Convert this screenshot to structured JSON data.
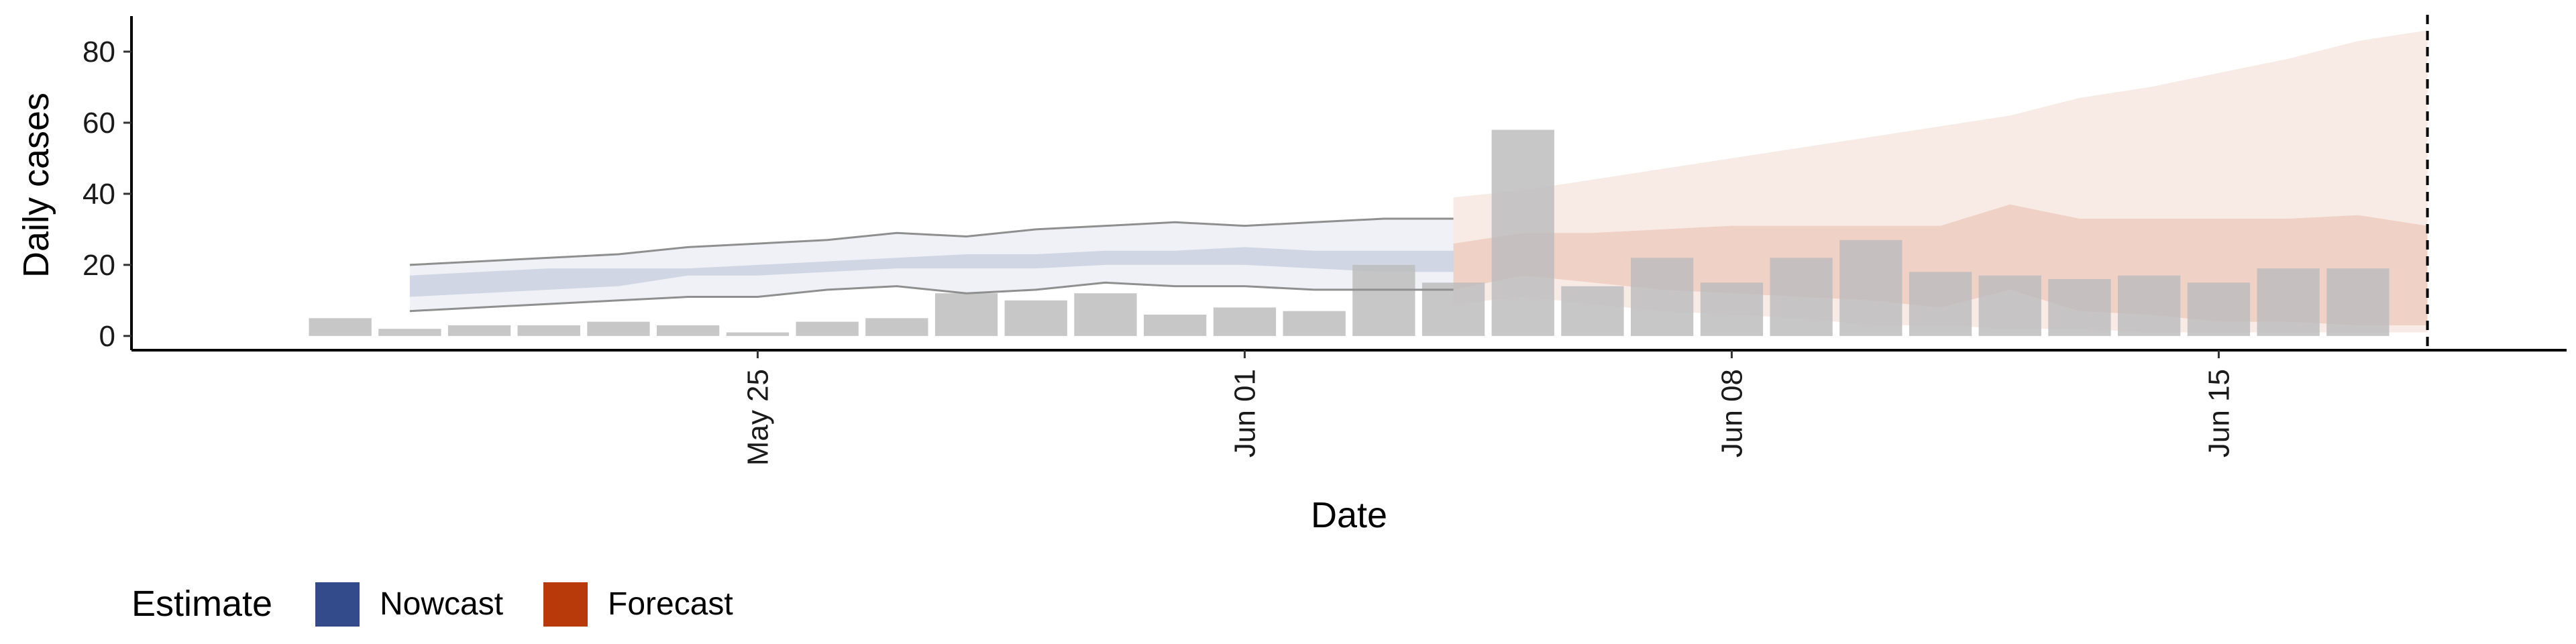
{
  "chart_data": {
    "type": "bar",
    "xlabel": "Date",
    "ylabel": "Daily cases",
    "ylim": [
      -4,
      90
    ],
    "yticks": [
      0,
      20,
      40,
      60,
      80
    ],
    "xlim": [
      "2020-05-16",
      "2020-06-20"
    ],
    "xticks": [
      {
        "date": "2020-05-25",
        "label": "May 25"
      },
      {
        "date": "2020-06-01",
        "label": "Jun 01"
      },
      {
        "date": "2020-06-08",
        "label": "Jun 08"
      },
      {
        "date": "2020-06-15",
        "label": "Jun 15"
      }
    ],
    "reference_line": {
      "date": "2020-06-18",
      "style": "dashed"
    },
    "grid": false,
    "legend": {
      "title": "Estimate",
      "placement": "bottom-left",
      "entries": [
        {
          "label": "Nowcast",
          "color": "#344b8b"
        },
        {
          "label": "Forecast",
          "color": "#b83a0a"
        }
      ]
    },
    "colors": {
      "bars": "#bdbdbd",
      "nowcast": "#344b8b",
      "forecast": "#b83a0a",
      "nowcast_outline": "#8f8f8f"
    },
    "observed": {
      "dates": [
        "2020-05-19",
        "2020-05-20",
        "2020-05-21",
        "2020-05-22",
        "2020-05-23",
        "2020-05-24",
        "2020-05-25",
        "2020-05-26",
        "2020-05-27",
        "2020-05-28",
        "2020-05-29",
        "2020-05-30",
        "2020-05-31",
        "2020-06-01",
        "2020-06-02",
        "2020-06-03",
        "2020-06-04",
        "2020-06-05",
        "2020-06-06",
        "2020-06-07",
        "2020-06-08",
        "2020-06-09",
        "2020-06-10",
        "2020-06-11",
        "2020-06-12",
        "2020-06-13",
        "2020-06-14",
        "2020-06-15",
        "2020-06-16",
        "2020-06-17"
      ],
      "values": [
        5,
        2,
        3,
        3,
        4,
        3,
        1,
        4,
        5,
        12,
        10,
        12,
        6,
        8,
        7,
        20,
        15,
        58,
        14,
        22,
        15,
        22,
        27,
        18,
        17,
        16,
        17,
        15,
        19,
        19
      ]
    },
    "nowcast": {
      "dates": [
        "2020-05-20",
        "2020-05-21",
        "2020-05-22",
        "2020-05-23",
        "2020-05-24",
        "2020-05-25",
        "2020-05-26",
        "2020-05-27",
        "2020-05-28",
        "2020-05-29",
        "2020-05-30",
        "2020-05-31",
        "2020-06-01",
        "2020-06-02",
        "2020-06-03",
        "2020-06-04"
      ],
      "lower_90": [
        7,
        8,
        9,
        10,
        11,
        11,
        13,
        14,
        12,
        13,
        15,
        14,
        14,
        13,
        13,
        13
      ],
      "lower_50": [
        11,
        12,
        13,
        14,
        17,
        17,
        18,
        19,
        19,
        19,
        20,
        20,
        20,
        19,
        18,
        18
      ],
      "upper_50": [
        17,
        18,
        19,
        19,
        19,
        20,
        21,
        22,
        23,
        23,
        24,
        24,
        25,
        24,
        24,
        24
      ],
      "upper_90": [
        20,
        21,
        22,
        23,
        25,
        26,
        27,
        29,
        28,
        30,
        31,
        32,
        31,
        32,
        33,
        33
      ]
    },
    "forecast": {
      "dates": [
        "2020-06-04",
        "2020-06-05",
        "2020-06-06",
        "2020-06-07",
        "2020-06-08",
        "2020-06-09",
        "2020-06-10",
        "2020-06-11",
        "2020-06-12",
        "2020-06-13",
        "2020-06-14",
        "2020-06-15",
        "2020-06-16",
        "2020-06-17",
        "2020-06-18"
      ],
      "lower_90": [
        9,
        11,
        9,
        7,
        6,
        5,
        3,
        3,
        2,
        2,
        1,
        1,
        1,
        1,
        1
      ],
      "lower_50": [
        13,
        17,
        15,
        13,
        12,
        11,
        10,
        8,
        13,
        7,
        6,
        4,
        4,
        3,
        3
      ],
      "upper_50": [
        26,
        29,
        29,
        30,
        31,
        31,
        31,
        31,
        37,
        33,
        33,
        33,
        33,
        34,
        31
      ],
      "upper_90": [
        39,
        41,
        44,
        47,
        50,
        53,
        56,
        59,
        62,
        67,
        70,
        74,
        78,
        83,
        86
      ]
    }
  }
}
